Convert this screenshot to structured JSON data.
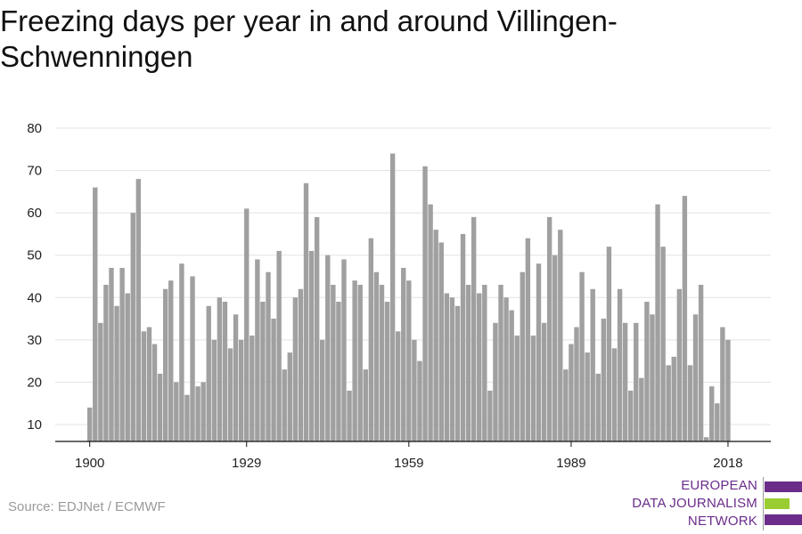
{
  "title": "Freezing days per year in and around Villingen-Schwenningen",
  "source": "Source: EDJNet / ECMWF",
  "logo": {
    "lines": [
      "EUROPEAN",
      "DATA JOURNALISM",
      "NETWORK"
    ],
    "colors": {
      "purple": "#6b2c8a",
      "green": "#9acd32"
    }
  },
  "chart_data": {
    "type": "bar",
    "title": "Freezing days per year in and around Villingen-Schwenningen",
    "xlabel": "",
    "ylabel": "",
    "x_start": 1900,
    "x_end": 2018,
    "xticks": [
      1900,
      1929,
      1959,
      1989,
      2018
    ],
    "yticks": [
      10,
      20,
      30,
      40,
      50,
      60,
      70,
      80
    ],
    "ylim": [
      6,
      80
    ],
    "grid": true,
    "bar_color": "#a0a0a0",
    "values": [
      14,
      66,
      34,
      43,
      47,
      38,
      47,
      41,
      60,
      68,
      32,
      33,
      29,
      22,
      42,
      44,
      20,
      48,
      17,
      45,
      19,
      20,
      38,
      30,
      40,
      39,
      28,
      36,
      30,
      61,
      31,
      49,
      39,
      46,
      35,
      51,
      23,
      27,
      40,
      42,
      67,
      51,
      59,
      30,
      50,
      43,
      39,
      49,
      18,
      44,
      43,
      23,
      54,
      46,
      43,
      39,
      74,
      32,
      47,
      44,
      30,
      25,
      71,
      62,
      56,
      53,
      41,
      40,
      38,
      55,
      43,
      59,
      41,
      43,
      18,
      34,
      43,
      40,
      37,
      31,
      46,
      54,
      31,
      48,
      34,
      59,
      50,
      56,
      23,
      29,
      33,
      46,
      27,
      42,
      22,
      35,
      52,
      28,
      42,
      34,
      18,
      34,
      21,
      39,
      36,
      62,
      52,
      24,
      26,
      42,
      64,
      24,
      36,
      43,
      7,
      19,
      15,
      33,
      30
    ]
  }
}
